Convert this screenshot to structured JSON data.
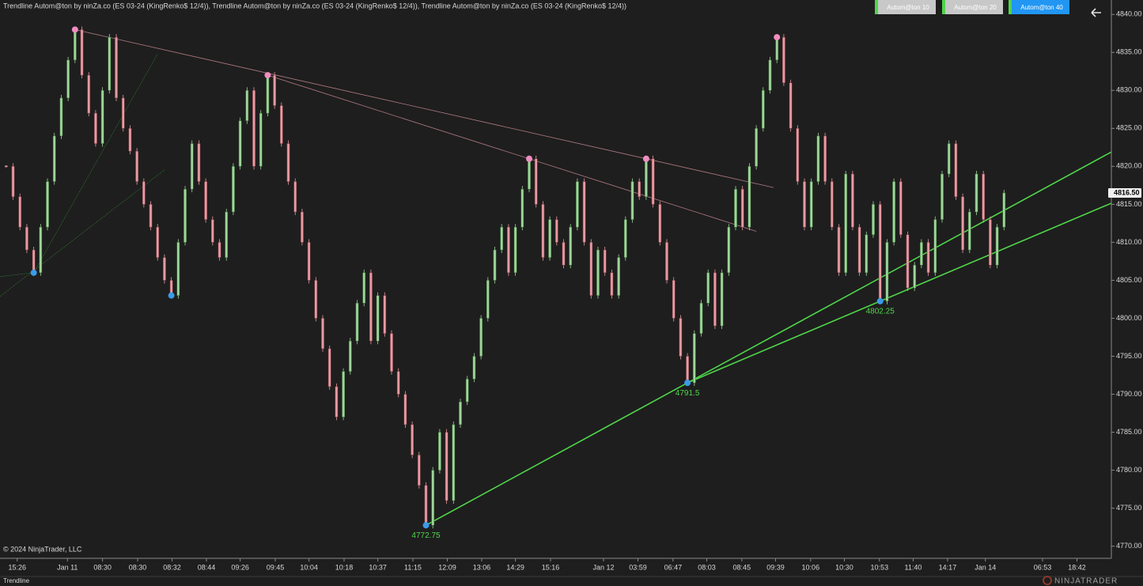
{
  "chart_data": {
    "type": "renko",
    "title": "Trendline Autom@ton by ninZa.co (ES 03-24 (KingRenko$ 12/4)), Trendline Autom@ton by ninZa.co (ES 03-24 (KingRenko$ 12/4)), Trendline Autom@ton by ninZa.co (ES 03-24 (KingRenko$ 12/4))",
    "buttons": [
      "Autom@ton  10",
      "Autom@ton  20",
      "Autom@ton  40"
    ],
    "copyright": "© 2024 NinjaTrader, LLC",
    "tab": "Trendline",
    "logo": "NINJATRADER",
    "up_color": "#9fd59a",
    "down_color": "#e89aa2",
    "swing_high_color": "#f08cc0",
    "swing_low_color": "#3a9be8",
    "support_color": "#4fd64a",
    "resistance_color": "#b07a82",
    "values": [
      4820,
      4816,
      4812,
      4809,
      4806,
      4812,
      4818,
      4824,
      4829,
      4834,
      4838,
      4832,
      4827,
      4823,
      4830,
      4837,
      4829,
      4825,
      4822,
      4818,
      4815,
      4812,
      4808,
      4805,
      4803,
      4810,
      4817,
      4823,
      4818,
      4813,
      4810,
      4808,
      4814,
      4820,
      4826,
      4830,
      4820,
      4827,
      4832,
      4828,
      4823,
      4818,
      4814,
      4810,
      4805,
      4800,
      4796,
      4791,
      4787,
      4793,
      4797,
      4802,
      4806,
      4797,
      4803,
      4798,
      4793,
      4790,
      4786,
      4782,
      4778,
      4772.75,
      4780,
      4785,
      4776,
      4786,
      4789,
      4792,
      4795,
      4800,
      4805,
      4809,
      4812,
      4806,
      4812,
      4817,
      4821,
      4815,
      4808,
      4813,
      4810,
      4807,
      4812,
      4818,
      4810,
      4803,
      4809,
      4806,
      4803,
      4808,
      4813,
      4818,
      4816,
      4821,
      4815,
      4810,
      4805,
      4800,
      4795,
      4791.5,
      4798,
      4802,
      4806,
      4799,
      4806,
      4812,
      4817,
      4812,
      4820,
      4825,
      4830,
      4834,
      4837,
      4831,
      4825,
      4818,
      4812,
      4818,
      4824,
      4818,
      4812,
      4806,
      4819,
      4812,
      4806,
      4811,
      4815,
      4802.25,
      4810,
      4818,
      4811,
      4804,
      4807,
      4810,
      4806,
      4813,
      4819,
      4823,
      4816,
      4809,
      4814,
      4819,
      4813,
      4807,
      4812,
      4816.5
    ],
    "swing_highs": [
      null,
      null,
      null,
      null,
      null,
      null,
      null,
      null,
      null,
      null,
      4838,
      null,
      null,
      null,
      null,
      null,
      null,
      null,
      null,
      null,
      null,
      null,
      null,
      null,
      null,
      null,
      null,
      null,
      null,
      null,
      null,
      null,
      null,
      null,
      null,
      null,
      null,
      null,
      4832,
      null,
      null,
      null,
      null,
      null,
      null,
      null,
      null,
      null,
      null,
      null,
      null,
      null,
      null,
      null,
      null,
      null,
      null,
      null,
      null,
      null,
      null,
      null,
      null,
      null,
      null,
      null,
      null,
      null,
      null,
      null,
      null,
      null,
      null,
      null,
      null,
      null,
      4821,
      null,
      null,
      null,
      null,
      null,
      null,
      null,
      null,
      null,
      null,
      null,
      null,
      null,
      null,
      null,
      null,
      4821,
      null,
      null,
      null,
      null,
      null,
      null,
      null,
      null,
      null,
      null,
      null,
      null,
      null,
      null,
      null,
      null,
      null,
      null,
      4837,
      null,
      null,
      null,
      null,
      null,
      null,
      null,
      null,
      null,
      null,
      null,
      null,
      null,
      null,
      null,
      null,
      null,
      null,
      null,
      null,
      null,
      null,
      null,
      null,
      null,
      null,
      null,
      null,
      null,
      null,
      null,
      null,
      null
    ],
    "swing_lows": [
      null,
      null,
      null,
      null,
      4806,
      null,
      null,
      null,
      null,
      null,
      null,
      null,
      null,
      null,
      null,
      null,
      null,
      null,
      null,
      null,
      null,
      null,
      null,
      null,
      4803,
      null,
      null,
      null,
      null,
      null,
      null,
      null,
      null,
      null,
      null,
      null,
      null,
      null,
      null,
      null,
      null,
      null,
      null,
      null,
      null,
      null,
      null,
      null,
      null,
      null,
      null,
      null,
      null,
      null,
      null,
      null,
      null,
      null,
      null,
      null,
      null,
      4772.75,
      null,
      null,
      null,
      null,
      null,
      null,
      null,
      null,
      null,
      null,
      null,
      null,
      null,
      null,
      null,
      null,
      null,
      null,
      null,
      null,
      null,
      null,
      null,
      null,
      null,
      null,
      null,
      null,
      null,
      null,
      null,
      null,
      null,
      null,
      null,
      null,
      null,
      4791.5,
      null,
      null,
      null,
      null,
      null,
      null,
      null,
      null,
      null,
      null,
      null,
      null,
      null,
      null,
      null,
      null,
      null,
      null,
      null,
      null,
      null,
      null,
      null,
      null,
      null,
      null,
      null,
      4802.25,
      null,
      null,
      null,
      null,
      null,
      null,
      null,
      null,
      null,
      null,
      null,
      null,
      null,
      null,
      null,
      null,
      null,
      null
    ],
    "swing_low_labels": [
      null,
      null,
      null,
      null,
      null,
      null,
      null,
      null,
      null,
      null,
      null,
      null,
      null,
      null,
      null,
      null,
      null,
      null,
      null,
      null,
      null,
      null,
      null,
      null,
      null,
      null,
      null,
      null,
      null,
      null,
      null,
      null,
      null,
      null,
      null,
      null,
      null,
      null,
      null,
      null,
      null,
      null,
      null,
      null,
      null,
      null,
      null,
      null,
      null,
      null,
      null,
      null,
      null,
      null,
      null,
      null,
      null,
      null,
      null,
      null,
      null,
      "4772.75",
      null,
      null,
      null,
      null,
      null,
      null,
      null,
      null,
      null,
      null,
      null,
      null,
      null,
      null,
      null,
      null,
      null,
      null,
      null,
      null,
      null,
      null,
      null,
      null,
      null,
      null,
      null,
      null,
      null,
      null,
      null,
      null,
      null,
      null,
      null,
      null,
      null,
      "4791.5",
      null,
      null,
      null,
      null,
      null,
      null,
      null,
      null,
      null,
      null,
      null,
      null,
      null,
      null,
      null,
      null,
      null,
      null,
      null,
      null,
      null,
      null,
      null,
      null,
      null,
      null,
      null,
      "4802.25",
      null,
      null,
      null,
      null,
      null,
      null,
      null,
      null,
      null,
      null,
      null,
      null,
      null,
      null,
      null,
      null,
      null,
      null
    ],
    "last_price": {
      "value": 4816.5,
      "label": "4816.50"
    },
    "ylim": [
      4768.4,
      4841.9
    ],
    "yticks": [
      {
        "value": 4770,
        "label": "4770.00"
      },
      {
        "value": 4775,
        "label": "4775.00"
      },
      {
        "value": 4780,
        "label": "4780.00"
      },
      {
        "value": 4785,
        "label": "4785.00"
      },
      {
        "value": 4790,
        "label": "4790.00"
      },
      {
        "value": 4795,
        "label": "4795.00"
      },
      {
        "value": 4800,
        "label": "4800.00"
      },
      {
        "value": 4805,
        "label": "4805.00"
      },
      {
        "value": 4810,
        "label": "4810.00"
      },
      {
        "value": 4815,
        "label": "4815.00"
      },
      {
        "value": 4820,
        "label": "4820.00"
      },
      {
        "value": 4825,
        "label": "4825.00"
      },
      {
        "value": 4830,
        "label": "4830.00"
      },
      {
        "value": 4835,
        "label": "4835.00"
      },
      {
        "value": 4840,
        "label": "4840.00"
      }
    ],
    "xlim": [
      -0.9,
      160.6
    ],
    "xticks": [
      {
        "value": 1.6,
        "label": "15:26"
      },
      {
        "value": 8.9,
        "label": "Jan 11"
      },
      {
        "value": 14.0,
        "label": "08:30"
      },
      {
        "value": 19.1,
        "label": "08:30"
      },
      {
        "value": 24.1,
        "label": "08:32"
      },
      {
        "value": 29.1,
        "label": "08:44"
      },
      {
        "value": 34.0,
        "label": "09:26"
      },
      {
        "value": 39.1,
        "label": "09:45"
      },
      {
        "value": 44.0,
        "label": "10:04"
      },
      {
        "value": 49.1,
        "label": "10:18"
      },
      {
        "value": 54.0,
        "label": "10:37"
      },
      {
        "value": 59.1,
        "label": "11:15"
      },
      {
        "value": 64.1,
        "label": "12:09"
      },
      {
        "value": 69.1,
        "label": "13:06"
      },
      {
        "value": 74.0,
        "label": "14:29"
      },
      {
        "value": 79.1,
        "label": "15:16"
      },
      {
        "value": 86.8,
        "label": "Jan 12"
      },
      {
        "value": 91.8,
        "label": "03:59"
      },
      {
        "value": 96.9,
        "label": "06:47"
      },
      {
        "value": 101.8,
        "label": "08:03"
      },
      {
        "value": 106.9,
        "label": "08:45"
      },
      {
        "value": 111.8,
        "label": "09:39"
      },
      {
        "value": 116.9,
        "label": "10:06"
      },
      {
        "value": 121.8,
        "label": "10:30"
      },
      {
        "value": 126.9,
        "label": "10:53"
      },
      {
        "value": 131.8,
        "label": "11:40"
      },
      {
        "value": 136.8,
        "label": "14:17"
      },
      {
        "value": 142.3,
        "label": "Jan 14"
      },
      {
        "value": 150.6,
        "label": "06:53"
      },
      {
        "value": 155.6,
        "label": "18:42"
      }
    ]
  }
}
